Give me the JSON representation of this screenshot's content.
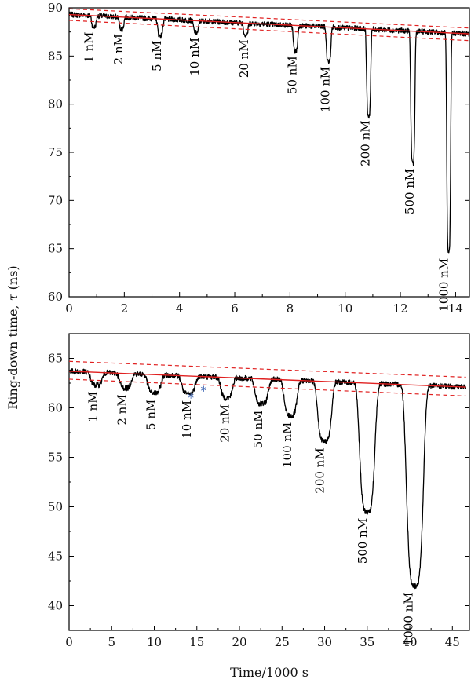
{
  "axes": {
    "ylabel_text": "Ring-down time, ",
    "ylabel_symbol": "τ",
    "ylabel_unit": " (ns)",
    "xlabel": "Time/1000 s"
  },
  "colors": {
    "trace": "#000000",
    "fit": "#e02020",
    "asterisk": "#4a6fb8"
  },
  "chart_data": [
    {
      "type": "line",
      "panel": "top",
      "xlim": [
        0,
        14.5
      ],
      "ylim": [
        60,
        90
      ],
      "xticks": [
        0,
        2,
        4,
        6,
        8,
        10,
        12,
        14
      ],
      "yticks": [
        60,
        65,
        70,
        75,
        80,
        85,
        90
      ],
      "baseline_fit": {
        "x": [
          0,
          14.5
        ],
        "y": [
          89.3,
          87.3
        ]
      },
      "band_upper": {
        "x": [
          0,
          14.5
        ],
        "y": [
          89.9,
          87.9
        ]
      },
      "band_lower": {
        "x": [
          0,
          14.5
        ],
        "y": [
          88.7,
          86.6
        ]
      },
      "dips": [
        {
          "label": "1 nM",
          "x": 0.9,
          "min": 88.0,
          "width": 0.2
        },
        {
          "label": "2 nM",
          "x": 1.9,
          "min": 87.8,
          "width": 0.2
        },
        {
          "label": "5 nM",
          "x": 3.3,
          "min": 87.1,
          "width": 0.22
        },
        {
          "label": "10 nM",
          "x": 4.6,
          "min": 87.4,
          "width": 0.22
        },
        {
          "label": "20 nM",
          "x": 6.4,
          "min": 87.2,
          "width": 0.2
        },
        {
          "label": "50 nM",
          "x": 8.2,
          "min": 85.5,
          "width": 0.2
        },
        {
          "label": "100 nM",
          "x": 9.4,
          "min": 84.4,
          "width": 0.2
        },
        {
          "label": "200 nM",
          "x": 10.85,
          "min": 78.8,
          "width": 0.18
        },
        {
          "label": "500 nM",
          "x": 12.45,
          "min": 73.8,
          "width": 0.18
        },
        {
          "label": "1000 nM",
          "x": 13.75,
          "min": 64.5,
          "width": 0.17
        }
      ]
    },
    {
      "type": "line",
      "panel": "bottom",
      "xlim": [
        0,
        47
      ],
      "ylim": [
        37.5,
        67.5
      ],
      "xticks": [
        0,
        5,
        10,
        15,
        20,
        25,
        30,
        35,
        40,
        45
      ],
      "yticks": [
        40,
        45,
        50,
        55,
        60,
        65
      ],
      "baseline_fit": {
        "x": [
          0,
          46.5
        ],
        "y": [
          63.7,
          62.1
        ]
      },
      "band_upper": {
        "x": [
          0,
          46.5
        ],
        "y": [
          64.7,
          63.1
        ]
      },
      "band_lower": {
        "x": [
          0,
          46.5
        ],
        "y": [
          62.9,
          61.2
        ]
      },
      "asterisks": [
        {
          "text": "*",
          "x": 14.3,
          "y": 60.6
        },
        {
          "text": "*",
          "x": 15.8,
          "y": 61.3
        }
      ],
      "dips": [
        {
          "label": "1 nM",
          "x": 3.2,
          "min": 62.3,
          "width": 1.6
        },
        {
          "label": "2 nM",
          "x": 6.6,
          "min": 62.0,
          "width": 1.6
        },
        {
          "label": "5 nM",
          "x": 10.0,
          "min": 61.5,
          "width": 1.8
        },
        {
          "label": "10 nM",
          "x": 14.0,
          "min": 61.4,
          "width": 1.8
        },
        {
          "label": "20 nM",
          "x": 18.5,
          "min": 61.0,
          "width": 1.6
        },
        {
          "label": "50 nM",
          "x": 22.6,
          "min": 60.4,
          "width": 1.8
        },
        {
          "label": "100 nM",
          "x": 26.0,
          "min": 59.2,
          "width": 1.8
        },
        {
          "label": "200 nM",
          "x": 30.0,
          "min": 56.6,
          "width": 1.9
        },
        {
          "label": "500 nM",
          "x": 35.0,
          "min": 49.5,
          "width": 2.1
        },
        {
          "label": "1000 nM",
          "x": 40.6,
          "min": 42.0,
          "width": 2.3
        }
      ]
    }
  ]
}
